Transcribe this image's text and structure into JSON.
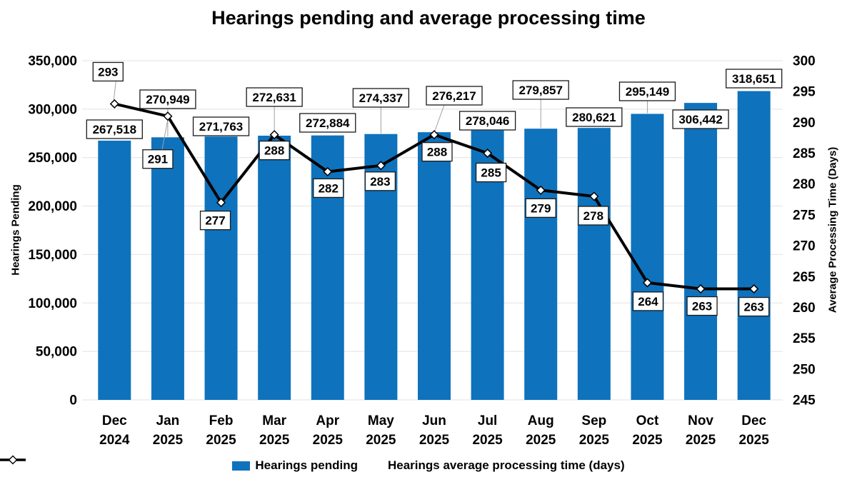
{
  "title": "Hearings pending and average processing time",
  "axes": {
    "left": {
      "title": "Hearings Pending",
      "ticks": [
        "0",
        "50,000",
        "100,000",
        "150,000",
        "200,000",
        "250,000",
        "300,000",
        "350,000"
      ]
    },
    "right": {
      "title": "Average Processing Time (Days)",
      "ticks": [
        "245",
        "250",
        "255",
        "260",
        "265",
        "270",
        "275",
        "280",
        "285",
        "290",
        "295",
        "300"
      ]
    }
  },
  "colors": {
    "bar": "#0F72BC",
    "line": "#000000",
    "marker_fill": "#FFFFFF",
    "gridline": "#E2E2E2",
    "label_box_fill": "#FFFFFF",
    "label_box_border": "#1A1A1A",
    "leader": "#A0A0A0",
    "text": "#000000",
    "background": "#FFFFFF"
  },
  "chart_data": {
    "type": "combo",
    "title": "Hearings pending and average processing time",
    "categories": [
      [
        "Dec",
        "2024"
      ],
      [
        "Jan",
        "2025"
      ],
      [
        "Feb",
        "2025"
      ],
      [
        "Mar",
        "2025"
      ],
      [
        "Apr",
        "2025"
      ],
      [
        "May",
        "2025"
      ],
      [
        "Jun",
        "2025"
      ],
      [
        "Jul",
        "2025"
      ],
      [
        "Aug",
        "2025"
      ],
      [
        "Sep",
        "2025"
      ],
      [
        "Oct",
        "2025"
      ],
      [
        "Nov",
        "2025"
      ],
      [
        "Dec",
        "2025"
      ]
    ],
    "series": [
      {
        "name": "Hearings pending",
        "type": "bar",
        "axis": "left",
        "values": [
          267518,
          270949,
          271763,
          272631,
          272884,
          274337,
          276217,
          278046,
          279857,
          280621,
          295149,
          306442,
          318651
        ],
        "data_labels": [
          "267,518",
          "270,949",
          "271,763",
          "272,631",
          "272,884",
          "274,337",
          "276,217",
          "278,046",
          "279,857",
          "280,621",
          "295,149",
          "306,442",
          "318,651"
        ]
      },
      {
        "name": "Hearings average processing time (days)",
        "type": "line",
        "axis": "right",
        "values": [
          293,
          291,
          277,
          288,
          282,
          283,
          288,
          285,
          279,
          278,
          264,
          263,
          263
        ],
        "data_labels": [
          "293",
          "291",
          "277",
          "288",
          "282",
          "283",
          "288",
          "285",
          "279",
          "278",
          "264",
          "263",
          "263"
        ]
      }
    ],
    "left_axis_range": [
      0,
      350000,
      50000
    ],
    "right_axis_range": [
      245,
      300,
      5
    ],
    "grid": "horizontal",
    "legend_position": "bottom"
  }
}
